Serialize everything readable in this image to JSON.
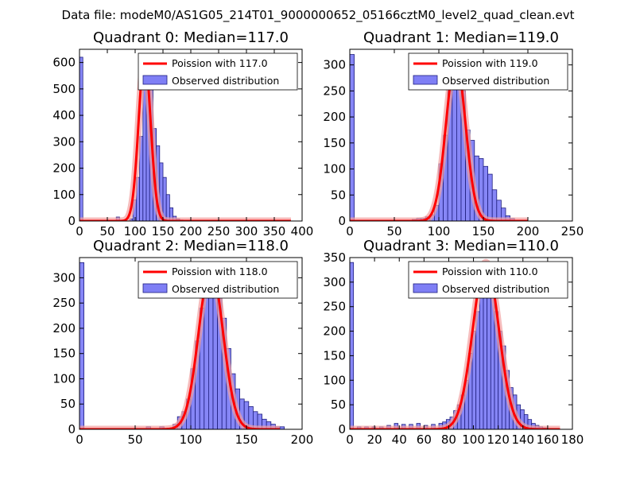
{
  "suptitle": "Data file: modeM0/AS1G05_214T01_9000000652_05166cztM0_level2_quad_clean.evt",
  "colors": {
    "bar_fill": "#7f7ff5",
    "bar_edge": "#1f1f7f",
    "poisson_line": "#ff0000",
    "poisson_halo": "#f2a0a0"
  },
  "chart_data": [
    {
      "type": "bar",
      "title": "Quadrant 0: Median=117.0",
      "median": 117.0,
      "scale": 620,
      "xlim": [
        0,
        400
      ],
      "ylim": [
        0,
        650
      ],
      "xticks": [
        0,
        50,
        100,
        150,
        200,
        250,
        300,
        350,
        400
      ],
      "yticks": [
        0,
        100,
        200,
        300,
        400,
        500,
        600
      ],
      "legend": {
        "location": "upper right",
        "entries": [
          "Poission with 117.0",
          "Observed distribution"
        ]
      },
      "series": [
        {
          "name": "Observed distribution",
          "bin_width": 6,
          "bins": [
            [
              0,
              620
            ],
            [
              66,
              15
            ],
            [
              90,
              8
            ],
            [
              96,
              80
            ],
            [
              102,
              165
            ],
            [
              108,
              320
            ],
            [
              114,
              620
            ],
            [
              120,
              610
            ],
            [
              126,
              510
            ],
            [
              132,
              350
            ],
            [
              138,
              285
            ],
            [
              144,
              220
            ],
            [
              150,
              165
            ],
            [
              156,
              100
            ],
            [
              162,
              50
            ],
            [
              168,
              18
            ],
            [
              174,
              8
            ],
            [
              180,
              4
            ]
          ]
        },
        {
          "name": "Poission with 117.0",
          "x_range": [
            0,
            380
          ]
        }
      ]
    },
    {
      "type": "bar",
      "title": "Quadrant 1: Median=119.0",
      "median": 119.0,
      "scale": 310,
      "xlim": [
        0,
        250
      ],
      "ylim": [
        0,
        330
      ],
      "xticks": [
        0,
        50,
        100,
        150,
        200,
        250
      ],
      "yticks": [
        0,
        50,
        100,
        150,
        200,
        250,
        300
      ],
      "legend": {
        "location": "upper right",
        "entries": [
          "Poission with 119.0",
          "Observed distribution"
        ]
      },
      "series": [
        {
          "name": "Observed distribution",
          "bin_width": 5,
          "bins": [
            [
              0,
              320
            ],
            [
              70,
              3
            ],
            [
              75,
              5
            ],
            [
              80,
              5
            ],
            [
              85,
              8
            ],
            [
              90,
              12
            ],
            [
              95,
              30
            ],
            [
              100,
              110
            ],
            [
              105,
              165
            ],
            [
              110,
              250
            ],
            [
              115,
              300
            ],
            [
              120,
              275
            ],
            [
              125,
              250
            ],
            [
              130,
              175
            ],
            [
              135,
              155
            ],
            [
              140,
              125
            ],
            [
              145,
              120
            ],
            [
              150,
              105
            ],
            [
              155,
              90
            ],
            [
              160,
              60
            ],
            [
              165,
              40
            ],
            [
              170,
              25
            ],
            [
              175,
              10
            ],
            [
              180,
              5
            ]
          ]
        },
        {
          "name": "Poission with 119.0",
          "x_range": [
            0,
            200
          ]
        }
      ]
    },
    {
      "type": "bar",
      "title": "Quadrant 2: Median=118.0",
      "median": 118.0,
      "scale": 320,
      "xlim": [
        0,
        200
      ],
      "ylim": [
        0,
        340
      ],
      "xticks": [
        0,
        50,
        100,
        150,
        200
      ],
      "yticks": [
        0,
        50,
        100,
        150,
        200,
        250,
        300
      ],
      "legend": {
        "location": "upper right",
        "entries": [
          "Poission with 118.0",
          "Observed distribution"
        ]
      },
      "series": [
        {
          "name": "Observed distribution",
          "bin_width": 4,
          "bins": [
            [
              0,
              330
            ],
            [
              60,
              5
            ],
            [
              72,
              5
            ],
            [
              84,
              10
            ],
            [
              88,
              25
            ],
            [
              92,
              35
            ],
            [
              96,
              60
            ],
            [
              100,
              120
            ],
            [
              104,
              175
            ],
            [
              108,
              240
            ],
            [
              112,
              270
            ],
            [
              116,
              305
            ],
            [
              120,
              300
            ],
            [
              124,
              265
            ],
            [
              128,
              220
            ],
            [
              132,
              160
            ],
            [
              136,
              110
            ],
            [
              140,
              80
            ],
            [
              144,
              60
            ],
            [
              148,
              55
            ],
            [
              152,
              45
            ],
            [
              156,
              35
            ],
            [
              160,
              30
            ],
            [
              164,
              20
            ],
            [
              168,
              15
            ],
            [
              172,
              10
            ],
            [
              176,
              5
            ],
            [
              180,
              5
            ]
          ]
        },
        {
          "name": "Poission with 118.0",
          "x_range": [
            0,
            180
          ]
        }
      ]
    },
    {
      "type": "bar",
      "title": "Quadrant 3: Median=110.0",
      "median": 110.0,
      "scale": 340,
      "xlim": [
        0,
        180
      ],
      "ylim": [
        0,
        350
      ],
      "xticks": [
        0,
        20,
        40,
        60,
        80,
        100,
        120,
        140,
        160,
        180
      ],
      "yticks": [
        0,
        50,
        100,
        150,
        200,
        250,
        300,
        350
      ],
      "legend": {
        "location": "upper right",
        "entries": [
          "Poission with 110.0",
          "Observed distribution"
        ]
      },
      "series": [
        {
          "name": "Observed distribution",
          "bin_width": 3,
          "bins": [
            [
              0,
              340
            ],
            [
              6,
              5
            ],
            [
              12,
              5
            ],
            [
              18,
              5
            ],
            [
              24,
              5
            ],
            [
              30,
              8
            ],
            [
              36,
              12
            ],
            [
              42,
              10
            ],
            [
              48,
              10
            ],
            [
              54,
              12
            ],
            [
              60,
              8
            ],
            [
              66,
              10
            ],
            [
              72,
              12
            ],
            [
              75,
              15
            ],
            [
              78,
              20
            ],
            [
              81,
              25
            ],
            [
              84,
              38
            ],
            [
              87,
              50
            ],
            [
              90,
              70
            ],
            [
              93,
              100
            ],
            [
              96,
              155
            ],
            [
              99,
              200
            ],
            [
              102,
              240
            ],
            [
              105,
              270
            ],
            [
              108,
              290
            ],
            [
              111,
              320
            ],
            [
              114,
              270
            ],
            [
              117,
              240
            ],
            [
              120,
              200
            ],
            [
              123,
              170
            ],
            [
              126,
              120
            ],
            [
              129,
              85
            ],
            [
              132,
              70
            ],
            [
              135,
              50
            ],
            [
              138,
              40
            ],
            [
              141,
              30
            ],
            [
              144,
              20
            ],
            [
              147,
              12
            ],
            [
              150,
              8
            ],
            [
              153,
              5
            ],
            [
              156,
              3
            ]
          ]
        },
        {
          "name": "Poission with 110.0",
          "x_range": [
            0,
            170
          ]
        }
      ]
    }
  ]
}
